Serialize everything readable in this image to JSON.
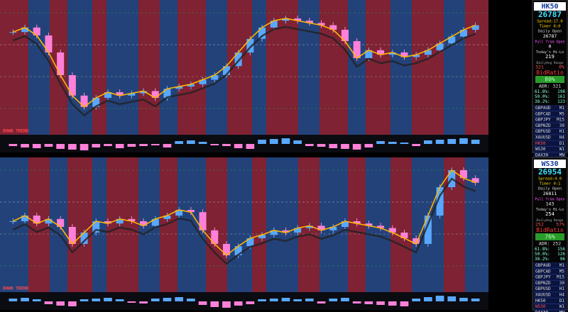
{
  "panels": [
    {
      "ticker": "HK50",
      "price": "26787",
      "spread": "Spread:17.0",
      "timer": "Timer 0:0",
      "daily_open_label": "Daily Open",
      "daily_open": "26787",
      "pull_label": "Pull from Open",
      "pull": "0",
      "hilo_label": "Today's Hi-Lo",
      "hilo": "219",
      "avg_label": "DailyAvg Range",
      "avg": "321",
      "avg_pct": "0%",
      "bid_label": "BidRatio",
      "bid": "80%",
      "adr": "ADR: 321",
      "fibs": [
        [
          "61.8%:",
          "198"
        ],
        [
          "50.0%:",
          "161"
        ],
        [
          "38.2%:",
          "123"
        ]
      ],
      "trend": "DOWN TREND",
      "prices": [
        78,
        82,
        75,
        60,
        40,
        22,
        12,
        20,
        25,
        22,
        24,
        26,
        20,
        28,
        30,
        32,
        36,
        40,
        48,
        60,
        72,
        82,
        88,
        90,
        88,
        86,
        84,
        80,
        70,
        55,
        62,
        58,
        60,
        56,
        58,
        62,
        68,
        74,
        80,
        84
      ],
      "volume": [
        -3,
        -5,
        -6,
        -4,
        -7,
        -8,
        -9,
        -5,
        -3,
        -6,
        -4,
        -3,
        -2,
        -5,
        4,
        5,
        3,
        -2,
        -3,
        -6,
        -7,
        6,
        7,
        8,
        5,
        -3,
        -4,
        -6,
        -7,
        -8,
        -5,
        4,
        3,
        2,
        -3,
        5,
        6,
        7,
        8,
        6
      ]
    },
    {
      "ticker": "WS30",
      "price": "26954",
      "spread": "Spread:4.0",
      "timer": "Timer 0:1",
      "daily_open_label": "Daily Open",
      "daily_open": "26811",
      "pull_label": "Pull from Open",
      "pull": "143",
      "hilo_label": "Today's Hi-Lo",
      "hilo": "254",
      "avg_label": "DailyAvg Range",
      "avg": "252",
      "avg_pct": "57%",
      "bid_label": "BidRatio",
      "bid": "76%",
      "adr": "ADR: 252",
      "fibs": [
        [
          "61.8%:",
          "156"
        ],
        [
          "50.0%:",
          "126"
        ],
        [
          "38.2%:",
          "96"
        ]
      ],
      "trend": "DOWN TREND",
      "prices": [
        50,
        55,
        48,
        52,
        45,
        30,
        40,
        50,
        48,
        52,
        50,
        46,
        52,
        55,
        60,
        58,
        42,
        30,
        20,
        28,
        35,
        38,
        42,
        40,
        44,
        46,
        42,
        45,
        50,
        48,
        46,
        44,
        40,
        35,
        30,
        55,
        80,
        95,
        88,
        84
      ],
      "volume": [
        4,
        5,
        3,
        -4,
        -6,
        -7,
        3,
        4,
        5,
        3,
        -2,
        -3,
        4,
        5,
        6,
        4,
        -5,
        -8,
        -9,
        -6,
        -4,
        3,
        4,
        5,
        3,
        4,
        -3,
        4,
        5,
        -3,
        -4,
        -5,
        -6,
        -7,
        4,
        6,
        8,
        7,
        5,
        4
      ]
    }
  ],
  "symbols": [
    [
      "GBPAUD",
      "M1"
    ],
    [
      "GBPCAD",
      "M5"
    ],
    [
      "GBPJPY",
      "M15"
    ],
    [
      "GBPNZD",
      "30"
    ],
    [
      "GBPUSD",
      "H1"
    ],
    [
      "XAUUSD",
      "H4"
    ],
    [
      "HK50",
      "D1"
    ],
    [
      "WS30",
      "W1"
    ],
    [
      "DAX30",
      "MN"
    ]
  ]
}
